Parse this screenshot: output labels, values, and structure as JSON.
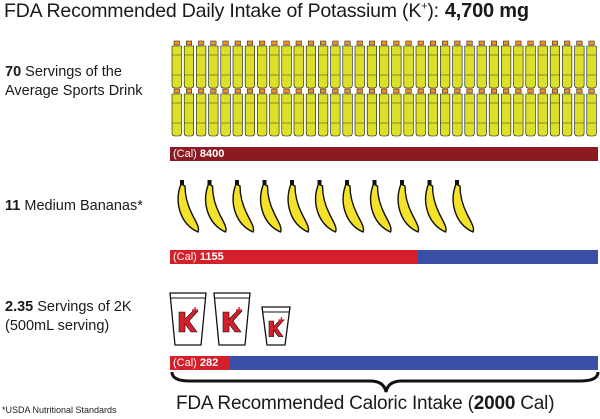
{
  "title": {
    "text": "FDA Recommended Daily Intake of Potassium (K",
    "sup": "+",
    "close": "):",
    "value": "4,700 mg"
  },
  "rows": [
    {
      "count": "70",
      "label_line1": "Servings of the",
      "label_line2": "Average Sports Drink",
      "icon": "sports-drink-bottle-icon",
      "icon_count": 70,
      "bar_prefix": "(Cal)",
      "bar_value": "8400",
      "bar_fraction": 1.0,
      "bar_color": "#8b1a22"
    },
    {
      "count": "11",
      "label_line1": "Medium Bananas*",
      "icon": "banana-icon",
      "icon_count": 11,
      "bar_prefix": "(Cal)",
      "bar_value": "1155",
      "bar_fraction": 0.58,
      "bar_color": "#d4202a",
      "rest_color": "#3a4fa7"
    },
    {
      "count": "2.35",
      "label_line1": "Servings of 2K",
      "label_line2": "(500mL serving)",
      "icon": "2k-cup-icon",
      "icon_count": 2.35,
      "bar_prefix": "(Cal)",
      "bar_value": "282",
      "bar_fraction": 0.14,
      "bar_color": "#d4202a",
      "rest_color": "#3a4fa7"
    }
  ],
  "footnote": "*USDA Nutritional Standards",
  "caloric": {
    "text": "FDA Recommended Caloric Intake (",
    "value": "2000",
    "unit": " Cal)"
  },
  "colors": {
    "bottle_liquid": "#dde028",
    "bottle_cap": "#f39221",
    "banana": "#f4e12a",
    "outline": "#111111",
    "cup_logo": "#d4202a"
  }
}
